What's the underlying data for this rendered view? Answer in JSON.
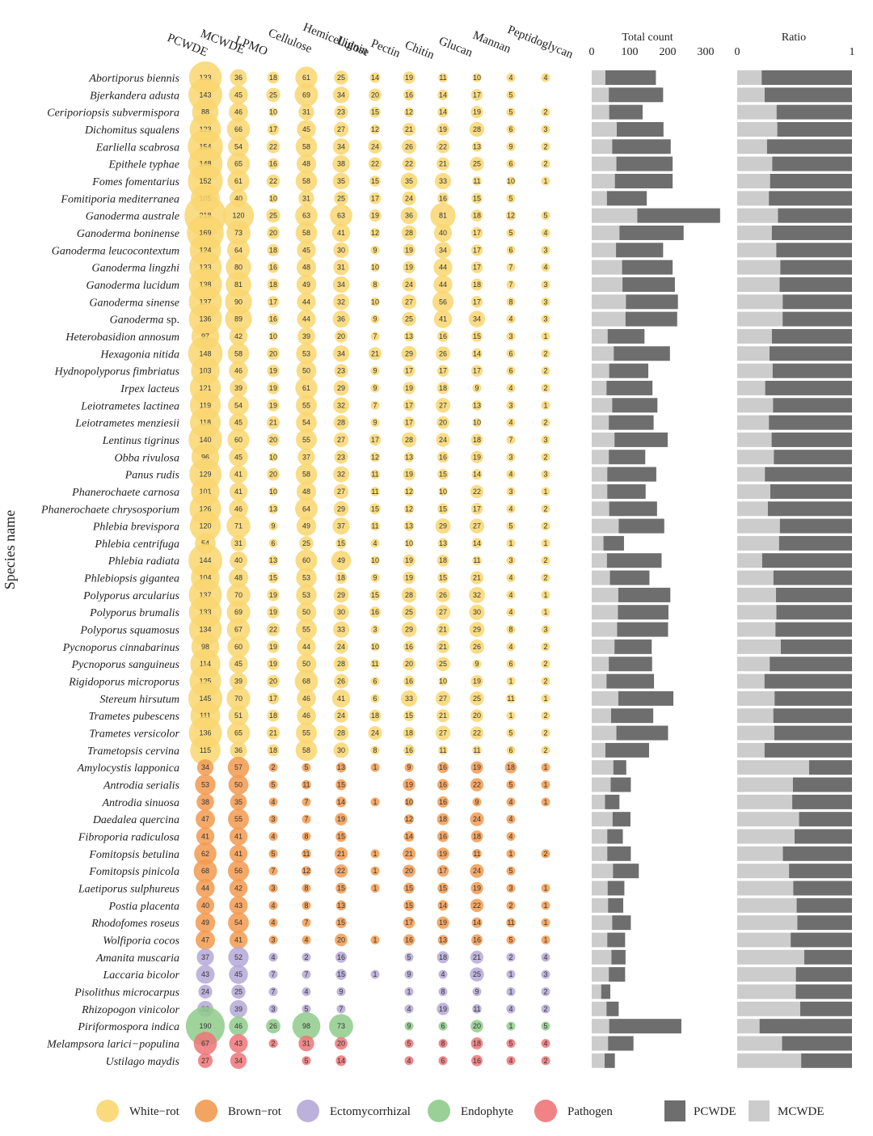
{
  "chart_data": {
    "type": "bubble-matrix-with-stacked-bars",
    "ylabel": "Species name",
    "columns": [
      "PCWDE",
      "MCWDE",
      "LPMO",
      "Cellulose",
      "Hemicellulose",
      "Lignin",
      "Pectin",
      "Chitin",
      "Glucan",
      "Mannan",
      "Peptidoglycan"
    ],
    "panel_total": {
      "title": "Total count",
      "ticks": [
        "0",
        "100",
        "200",
        "300"
      ],
      "xlim": [
        0,
        330
      ]
    },
    "panel_ratio": {
      "title": "Ratio",
      "ticks": [
        "0",
        "1"
      ],
      "xlim": [
        0,
        1
      ]
    },
    "groups": [
      {
        "key": "W",
        "label": "White−rot",
        "color": "#F9D66E"
      },
      {
        "key": "B",
        "label": "Brown−rot",
        "color": "#F29A4F"
      },
      {
        "key": "E",
        "label": "Ectomycorrhizal",
        "color": "#B5A8D6"
      },
      {
        "key": "N",
        "label": "Endophyte",
        "color": "#8FCB8B"
      },
      {
        "key": "P",
        "label": "Pathogen",
        "color": "#EF7478"
      }
    ],
    "bar_legend": [
      {
        "label": "PCWDE",
        "color": "#6e6e6e"
      },
      {
        "label": "MCWDE",
        "color": "#cccccc"
      }
    ],
    "species": [
      {
        "name": "Abortiporus biennis",
        "group": "W",
        "values": [
          133,
          36,
          18,
          61,
          25,
          14,
          19,
          11,
          10,
          4,
          4
        ]
      },
      {
        "name": "Bjerkandera adusta",
        "group": "W",
        "values": [
          143,
          45,
          25,
          69,
          34,
          20,
          16,
          14,
          17,
          5,
          null
        ]
      },
      {
        "name": "Ceriporiopsis subvermispora",
        "group": "W",
        "values": [
          88,
          46,
          10,
          31,
          23,
          15,
          12,
          14,
          19,
          5,
          2
        ]
      },
      {
        "name": "Dichomitus squalens",
        "group": "W",
        "values": [
          123,
          66,
          17,
          45,
          27,
          12,
          21,
          19,
          28,
          6,
          3
        ]
      },
      {
        "name": "Earliella scabrosa",
        "group": "W",
        "values": [
          154,
          54,
          22,
          58,
          34,
          24,
          26,
          22,
          13,
          9,
          2
        ]
      },
      {
        "name": "Epithele typhae",
        "group": "W",
        "values": [
          148,
          65,
          16,
          48,
          38,
          22,
          22,
          21,
          25,
          6,
          2
        ]
      },
      {
        "name": "Fomes fomentarius",
        "group": "W",
        "values": [
          152,
          61,
          22,
          58,
          35,
          15,
          35,
          33,
          11,
          10,
          1
        ]
      },
      {
        "name": "Fomitiporia mediterranea",
        "group": "W",
        "values": [
          105,
          40,
          10,
          31,
          25,
          17,
          24,
          16,
          15,
          5,
          null
        ]
      },
      {
        "name": "Ganoderma australe",
        "group": "W",
        "values": [
          218,
          120,
          25,
          63,
          63,
          19,
          36,
          81,
          18,
          12,
          5
        ]
      },
      {
        "name": "Ganoderma boninense",
        "group": "W",
        "values": [
          169,
          73,
          20,
          58,
          41,
          12,
          28,
          40,
          17,
          5,
          4
        ]
      },
      {
        "name": "Ganoderma leucocontextum",
        "group": "W",
        "values": [
          124,
          64,
          18,
          45,
          30,
          9,
          19,
          34,
          17,
          6,
          3
        ]
      },
      {
        "name": "Ganoderma lingzhi",
        "group": "W",
        "values": [
          133,
          80,
          16,
          48,
          31,
          10,
          19,
          44,
          17,
          7,
          4
        ]
      },
      {
        "name": "Ganoderma lucidum",
        "group": "W",
        "values": [
          138,
          81,
          18,
          49,
          34,
          8,
          24,
          44,
          18,
          7,
          3
        ]
      },
      {
        "name": "Ganoderma sinense",
        "group": "W",
        "values": [
          137,
          90,
          17,
          44,
          32,
          10,
          27,
          56,
          17,
          8,
          3
        ]
      },
      {
        "name": "Ganoderma sp.",
        "group": "W",
        "values": [
          136,
          89,
          16,
          44,
          36,
          9,
          25,
          41,
          34,
          4,
          3
        ]
      },
      {
        "name": "Heterobasidion annosum",
        "group": "W",
        "values": [
          97,
          42,
          10,
          39,
          20,
          7,
          13,
          16,
          15,
          3,
          1
        ]
      },
      {
        "name": "Hexagonia nitida",
        "group": "W",
        "values": [
          148,
          58,
          20,
          53,
          34,
          21,
          29,
          26,
          14,
          6,
          2
        ]
      },
      {
        "name": "Hydnopolyporus fimbriatus",
        "group": "W",
        "values": [
          103,
          46,
          19,
          50,
          23,
          9,
          17,
          17,
          17,
          6,
          2
        ]
      },
      {
        "name": "Irpex lacteus",
        "group": "W",
        "values": [
          121,
          39,
          19,
          61,
          29,
          9,
          19,
          18,
          9,
          4,
          2
        ]
      },
      {
        "name": "Leiotrametes lactinea",
        "group": "W",
        "values": [
          119,
          54,
          19,
          55,
          32,
          7,
          17,
          27,
          13,
          3,
          1
        ]
      },
      {
        "name": "Leiotrametes menziesii",
        "group": "W",
        "values": [
          118,
          45,
          21,
          54,
          28,
          9,
          17,
          20,
          10,
          4,
          2
        ]
      },
      {
        "name": "Lentinus tigrinus",
        "group": "W",
        "values": [
          140,
          60,
          20,
          55,
          27,
          17,
          28,
          24,
          18,
          7,
          3
        ]
      },
      {
        "name": "Obba rivulosa",
        "group": "W",
        "values": [
          96,
          45,
          10,
          37,
          23,
          12,
          13,
          16,
          19,
          3,
          2
        ]
      },
      {
        "name": "Panus rudis",
        "group": "W",
        "values": [
          129,
          41,
          20,
          58,
          32,
          11,
          19,
          15,
          14,
          4,
          3
        ]
      },
      {
        "name": "Phanerochaete carnosa",
        "group": "W",
        "values": [
          101,
          41,
          10,
          48,
          27,
          11,
          12,
          10,
          22,
          3,
          1
        ]
      },
      {
        "name": "Phanerochaete chrysosporium",
        "group": "W",
        "values": [
          126,
          46,
          13,
          64,
          29,
          15,
          12,
          15,
          17,
          4,
          2
        ]
      },
      {
        "name": "Phlebia brevispora",
        "group": "W",
        "values": [
          120,
          71,
          9,
          49,
          37,
          11,
          13,
          29,
          27,
          5,
          2
        ]
      },
      {
        "name": "Phlebia centrifuga",
        "group": "W",
        "values": [
          54,
          31,
          6,
          25,
          15,
          4,
          10,
          13,
          14,
          1,
          1
        ]
      },
      {
        "name": "Phlebia radiata",
        "group": "W",
        "values": [
          144,
          40,
          13,
          60,
          49,
          10,
          19,
          18,
          11,
          3,
          2
        ]
      },
      {
        "name": "Phlebiopsis gigantea",
        "group": "W",
        "values": [
          104,
          48,
          15,
          53,
          18,
          9,
          19,
          15,
          21,
          4,
          2
        ]
      },
      {
        "name": "Polyporus arcularius",
        "group": "W",
        "values": [
          137,
          70,
          19,
          53,
          29,
          15,
          28,
          26,
          32,
          4,
          1
        ]
      },
      {
        "name": "Polyporus brumalis",
        "group": "W",
        "values": [
          133,
          69,
          19,
          50,
          30,
          16,
          25,
          27,
          30,
          4,
          1
        ]
      },
      {
        "name": "Polyporus squamosus",
        "group": "W",
        "values": [
          134,
          67,
          22,
          55,
          33,
          3,
          29,
          21,
          29,
          8,
          3
        ]
      },
      {
        "name": "Pycnoporus cinnabarinus",
        "group": "W",
        "values": [
          98,
          60,
          19,
          44,
          24,
          10,
          16,
          21,
          26,
          4,
          2
        ]
      },
      {
        "name": "Pycnoporus sanguineus",
        "group": "W",
        "values": [
          114,
          45,
          19,
          50,
          28,
          11,
          20,
          25,
          9,
          6,
          2
        ]
      },
      {
        "name": "Rigidoporus microporus",
        "group": "W",
        "values": [
          125,
          39,
          20,
          68,
          26,
          6,
          16,
          10,
          19,
          1,
          2
        ]
      },
      {
        "name": "Stereum hirsutum",
        "group": "W",
        "values": [
          145,
          70,
          17,
          46,
          41,
          6,
          33,
          27,
          25,
          11,
          1
        ]
      },
      {
        "name": "Trametes pubescens",
        "group": "W",
        "values": [
          111,
          51,
          18,
          46,
          24,
          18,
          15,
          21,
          20,
          1,
          2
        ]
      },
      {
        "name": "Trametes versicolor",
        "group": "W",
        "values": [
          136,
          65,
          21,
          55,
          28,
          24,
          18,
          27,
          22,
          5,
          2
        ]
      },
      {
        "name": "Trametopsis cervina",
        "group": "W",
        "values": [
          115,
          36,
          18,
          58,
          30,
          8,
          16,
          11,
          11,
          6,
          2
        ]
      },
      {
        "name": "Amylocystis lapponica",
        "group": "B",
        "values": [
          34,
          57,
          2,
          5,
          13,
          1,
          9,
          16,
          19,
          18,
          1
        ]
      },
      {
        "name": "Antrodia serialis",
        "group": "B",
        "values": [
          53,
          50,
          5,
          11,
          15,
          null,
          19,
          16,
          22,
          5,
          1
        ]
      },
      {
        "name": "Antrodia sinuosa",
        "group": "B",
        "values": [
          38,
          35,
          4,
          7,
          14,
          1,
          10,
          16,
          9,
          4,
          1
        ]
      },
      {
        "name": "Daedalea quercina",
        "group": "B",
        "values": [
          47,
          55,
          3,
          7,
          19,
          null,
          12,
          18,
          24,
          4,
          null
        ]
      },
      {
        "name": "Fibroporia radiculosa",
        "group": "B",
        "values": [
          41,
          41,
          4,
          8,
          15,
          null,
          14,
          16,
          18,
          4,
          null
        ]
      },
      {
        "name": "Fomitopsis betulina",
        "group": "B",
        "values": [
          62,
          41,
          5,
          11,
          21,
          1,
          21,
          19,
          11,
          1,
          2
        ]
      },
      {
        "name": "Fomitopsis pinicola",
        "group": "B",
        "values": [
          68,
          56,
          7,
          12,
          22,
          1,
          20,
          17,
          24,
          5,
          null
        ]
      },
      {
        "name": "Laetiporus sulphureus",
        "group": "B",
        "values": [
          44,
          42,
          3,
          8,
          15,
          1,
          15,
          15,
          19,
          3,
          1
        ]
      },
      {
        "name": "Postia placenta",
        "group": "B",
        "values": [
          40,
          43,
          4,
          8,
          13,
          null,
          15,
          14,
          22,
          2,
          1
        ]
      },
      {
        "name": "Rhodofomes roseus",
        "group": "B",
        "values": [
          49,
          54,
          4,
          7,
          15,
          null,
          17,
          19,
          14,
          11,
          1
        ]
      },
      {
        "name": "Wolfiporia cocos",
        "group": "B",
        "values": [
          47,
          41,
          3,
          4,
          20,
          1,
          16,
          13,
          16,
          5,
          1
        ]
      },
      {
        "name": "Amanita muscaria",
        "group": "E",
        "values": [
          37,
          52,
          4,
          2,
          16,
          null,
          5,
          18,
          21,
          2,
          4
        ]
      },
      {
        "name": "Laccaria bicolor",
        "group": "E",
        "values": [
          43,
          45,
          7,
          7,
          15,
          1,
          9,
          4,
          25,
          1,
          3
        ]
      },
      {
        "name": "Pisolithus microcarpus",
        "group": "E",
        "values": [
          24,
          25,
          7,
          4,
          9,
          null,
          1,
          8,
          9,
          1,
          2
        ]
      },
      {
        "name": "Rhizopogon vinicolor",
        "group": "E",
        "values": [
          32,
          39,
          3,
          5,
          7,
          null,
          4,
          19,
          11,
          4,
          2
        ]
      },
      {
        "name": "Piriformospora indica",
        "group": "N",
        "values": [
          190,
          46,
          26,
          98,
          73,
          null,
          9,
          6,
          20,
          1,
          5
        ]
      },
      {
        "name": "Melampsora larici−populina",
        "group": "P",
        "values": [
          67,
          43,
          2,
          31,
          20,
          null,
          5,
          8,
          18,
          5,
          4
        ]
      },
      {
        "name": "Ustilago maydis",
        "group": "P",
        "values": [
          27,
          34,
          null,
          5,
          14,
          null,
          4,
          6,
          16,
          4,
          2
        ]
      }
    ]
  }
}
